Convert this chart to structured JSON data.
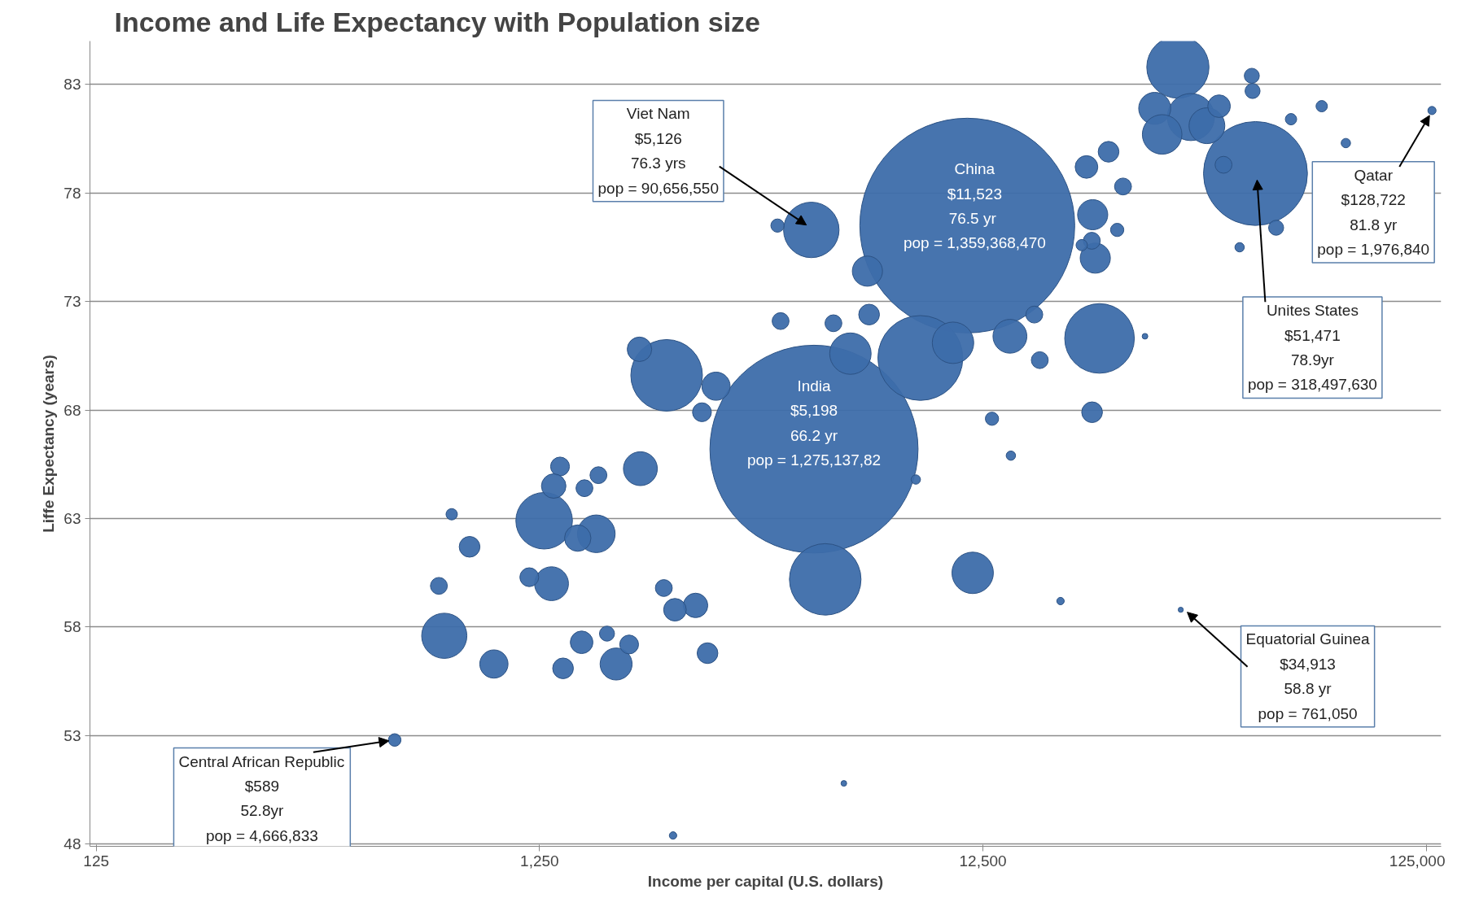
{
  "chart_data": {
    "type": "bubble",
    "title": "Income and Life Expectancy with Population size",
    "xlabel": "Income per capital (U.S. dollars)",
    "ylabel": "Liffe Expectancy (years)",
    "log": "x",
    "grid": "y",
    "xlim": [
      121,
      135000
    ],
    "xticks": [
      125,
      {
        "value": 1250,
        "label": "1,250"
      },
      {
        "value": 12500,
        "label": "12,500"
      },
      {
        "value": 125000,
        "label": "125,000"
      }
    ],
    "ylim": [
      47.9,
      85
    ],
    "yticks": [
      48,
      53,
      58,
      63,
      68,
      73,
      78,
      83
    ],
    "series": [
      {
        "color": "#3d6daa",
        "x": [
          11523,
          5198,
          51471,
          9030,
          2418,
          5510,
          22900,
          34400,
          5126,
          1280,
          36800,
          762,
          30500,
          31700,
          6280,
          10700,
          11850,
          1678,
          40000,
          2110,
          1330,
          1860,
          6860,
          22100,
          22400,
          14380,
          986,
          1524,
          1390,
          1345,
          3125,
          2100,
          2810,
          1555,
          24000,
          21400,
          42600,
          1185,
          869,
          6920,
          22030,
          1412,
          2990,
          2525,
          25870,
          16320,
          16790,
          1697,
          1578,
          741,
          1990,
          2905,
          22000,
          43600,
          2383,
          4370,
          5750,
          50500,
          50700,
          1774,
          57300,
          25100,
          4300,
          13100,
          589,
          792,
          61900,
          72600,
          20880,
          8820,
          14450,
          82300,
          47400,
          2500,
          6070,
          18700,
          128722,
          29000,
          34913
        ],
        "values": [
          76.5,
          66.2,
          78.9,
          70.4,
          69.6,
          60.2,
          71.3,
          83.8,
          76.3,
          62.9,
          81.5,
          57.6,
          81.9,
          80.7,
          70.6,
          71.1,
          60.5,
          62.3,
          81.1,
          65.3,
          60.0,
          56.3,
          74.4,
          77.0,
          75.0,
          71.4,
          56.3,
          62.1,
          65.4,
          64.5,
          69.1,
          70.8,
          59.0,
          57.3,
          79.9,
          79.2,
          82.0,
          60.3,
          61.7,
          72.4,
          67.9,
          56.1,
          56.8,
          58.8,
          78.3,
          72.4,
          70.3,
          65.0,
          64.4,
          59.9,
          57.2,
          67.9,
          75.8,
          79.3,
          59.8,
          72.1,
          72.0,
          83.4,
          82.7,
          57.7,
          76.4,
          76.3,
          76.5,
          67.6,
          52.8,
          63.2,
          81.4,
          82.0,
          75.6,
          64.8,
          65.9,
          80.3,
          75.5,
          48.4,
          50.8,
          59.2,
          81.8,
          71.4,
          58.8
        ],
        "sizes": [
          1,
          0.938,
          0.234,
          0.156,
          0.111,
          0.111,
          0.105,
          0.0838,
          0.0667,
          0.0693,
          0.0481,
          0.0443,
          0.0222,
          0.0339,
          0.0372,
          0.0372,
          0.0372,
          0.0308,
          0.0278,
          0.0249,
          0.0249,
          0.0222,
          0.0197,
          0.0197,
          0.0197,
          0.0249,
          0.0173,
          0.0151,
          0.0077,
          0.013,
          0.0173,
          0.013,
          0.013,
          0.0111,
          0.0093,
          0.0111,
          0.0111,
          0.0077,
          0.0093,
          0.0093,
          0.0093,
          0.0093,
          0.0093,
          0.0111,
          0.0062,
          0.0062,
          0.0062,
          0.0062,
          0.0062,
          0.0062,
          0.0077,
          0.0077,
          0.0062,
          0.0062,
          0.0062,
          0.0062,
          0.0062,
          0.0049,
          0.0049,
          0.0049,
          0.0049,
          0.0038,
          0.0038,
          0.0038,
          0.00343,
          0.0028,
          0.0028,
          0.0028,
          0.0028,
          0.0019,
          0.0019,
          0.0019,
          0.0019,
          0.0012,
          0.0007,
          0.0012,
          0.00145,
          0.0007,
          0.00056
        ]
      }
    ],
    "annotations": [
      {
        "text": "Viet Nam\n$5,126\n76.3 yrs\npop = 90,656,550",
        "x": 5126,
        "y": 76.3
      },
      {
        "text": "China\n$11,523\n76.5  yr\npop = 1,359,368,470",
        "x": 11523,
        "y": 76.5
      },
      {
        "text": "India\n$5,198\n66.2 yr\npop = 1,275,137,82",
        "x": 5198,
        "y": 66.2
      },
      {
        "text": "Qatar\n$128,722\n81.8 yr\npop = 1,976,840",
        "x": 128722,
        "y": 81.8
      },
      {
        "text": "Unites States\n$51,471\n78.9yr\npop = 318,497,630",
        "x": 51471,
        "y": 78.9
      },
      {
        "text": "Equatorial Guinea\n$34,913\n58.8 yr\npop = 761,050",
        "x": 34913,
        "y": 58.8
      },
      {
        "text": "Central African Republic\n$589\n52.8yr\npop = 4,666,833",
        "x": 589,
        "y": 52.8
      }
    ]
  }
}
